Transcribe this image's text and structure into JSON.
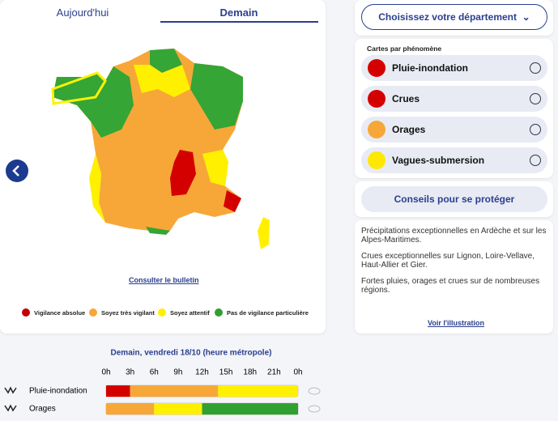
{
  "tabs": [
    "Aujourd'hui",
    "Demain"
  ],
  "department_button": "Choisissez votre département",
  "maps_heading": "Cartes par phénomène",
  "phenomena": [
    "Pluie-inondation",
    "Crues",
    "Orages",
    "Vagues-submersion"
  ],
  "advice_button": "Conseils pour se protéger",
  "summary": [
    "Précipitations exceptionnelles en Ardèche et sur les Alpes-Maritimes.",
    "Crues exceptionnelles sur Lignon, Loire-Vellave, Haut-Allier et Gier.",
    "Fortes pluies, orages et crues sur de nombreuses régions."
  ],
  "illustration_link": "Voir l'illustration",
  "bulletin_link": "Consulter le bulletin",
  "legend": [
    "Vigilance absolue",
    "Soyez très vigilant",
    "Soyez attentif",
    "Pas de vigilance particulière"
  ],
  "timeline": {
    "title": "Demain, vendredi 18/10 (heure métropole)",
    "range": [
      0,
      24
    ],
    "hours": [
      "0h",
      "3h",
      "6h",
      "9h",
      "12h",
      "15h",
      "18h",
      "21h",
      "0h"
    ],
    "rows": [
      {
        "name": "Pluie-inondation",
        "segments": [
          {
            "start": 0,
            "end": 3,
            "color": "#d40000"
          },
          {
            "start": 3,
            "end": 14,
            "color": "#f7a738"
          },
          {
            "start": 14,
            "end": 24,
            "color": "#fff000"
          }
        ]
      },
      {
        "name": "Orages",
        "segments": [
          {
            "start": 0,
            "end": 6,
            "color": "#f7a738"
          },
          {
            "start": 6,
            "end": 12,
            "color": "#fff000"
          },
          {
            "start": 12,
            "end": 24,
            "color": "#30a030"
          }
        ]
      }
    ]
  }
}
